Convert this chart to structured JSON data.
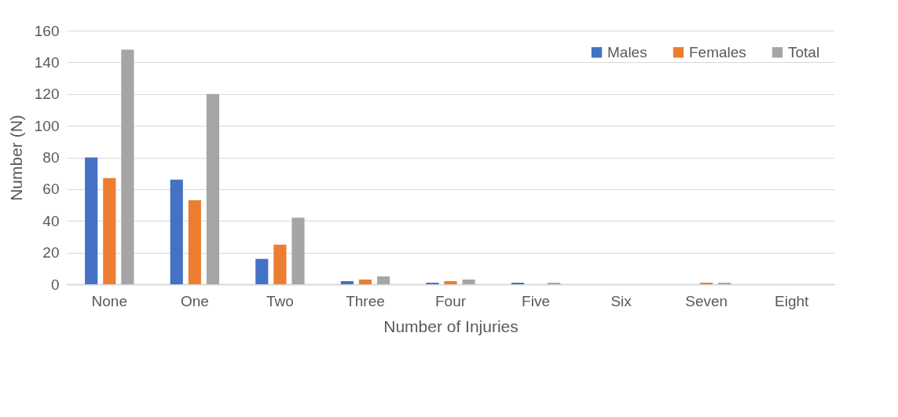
{
  "chart_data": {
    "type": "bar",
    "xlabel": "Number of Injuries",
    "ylabel": "Number (N)",
    "categories": [
      "None",
      "One",
      "Two",
      "Three",
      "Four",
      "Five",
      "Six",
      "Seven",
      "Eight"
    ],
    "series": [
      {
        "name": "Males",
        "color": "#4472c4",
        "values": [
          80,
          66,
          16,
          2,
          1,
          1,
          0,
          0,
          0
        ]
      },
      {
        "name": "Females",
        "color": "#ed7d31",
        "values": [
          67,
          53,
          25,
          3,
          2,
          0,
          0,
          1,
          0
        ]
      },
      {
        "name": "Total",
        "color": "#a5a5a5",
        "values": [
          148,
          120,
          42,
          5,
          3,
          1,
          0,
          1,
          0
        ]
      }
    ],
    "ylim": [
      0,
      160
    ],
    "yticks": [
      0,
      20,
      40,
      60,
      80,
      100,
      120,
      140,
      160
    ],
    "grid": "y",
    "legend": "top right"
  }
}
